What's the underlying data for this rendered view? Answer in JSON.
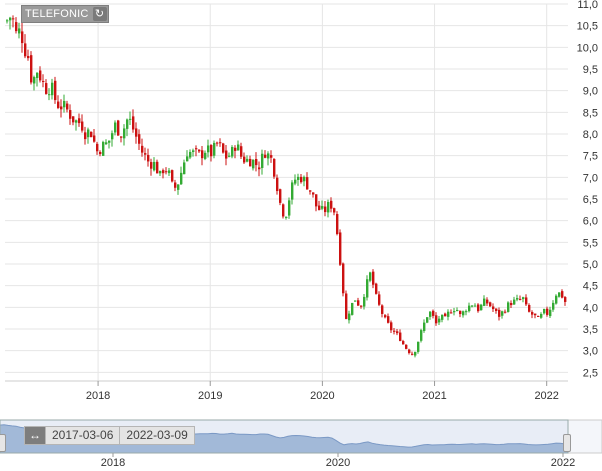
{
  "symbol": {
    "label": "TELEFONIC",
    "refresh_icon": "refresh-icon"
  },
  "navigator": {
    "range_start": "2017-03-06",
    "range_end": "2022-03-09",
    "expand_icon": "expand-horizontal-icon",
    "tick_labels": [
      "2018",
      "2020",
      "2022"
    ]
  },
  "colors": {
    "up": "#33aa33",
    "down": "#cc1111",
    "grid": "#e6e6e6",
    "navigator_fill": "#9fb6d6"
  },
  "chart_data": {
    "type": "candlestick",
    "title": "",
    "xlabel": "",
    "ylabel": "",
    "ylim": [
      2.3,
      11.0
    ],
    "x_range": [
      2017.17,
      2022.19
    ],
    "yticks": [
      2.5,
      3.0,
      3.5,
      4.0,
      4.5,
      5.0,
      5.5,
      6.0,
      6.5,
      7.0,
      7.5,
      8.0,
      8.5,
      9.0,
      9.5,
      10.0,
      10.5,
      11.0
    ],
    "ytick_labels": [
      "2,5",
      "3,0",
      "3,5",
      "4,0",
      "4,5",
      "5,0",
      "5,5",
      "6,0",
      "6,5",
      "7,0",
      "7,5",
      "8,0",
      "8,5",
      "9,0",
      "9,5",
      "10,0",
      "10,5",
      "11,0"
    ],
    "xticks": [
      2018,
      2019,
      2020,
      2021,
      2022
    ],
    "xtick_labels": [
      "2018",
      "2019",
      "2020",
      "2021",
      "2022"
    ],
    "grid": true,
    "legend": "none",
    "path_points": [
      [
        2017.17,
        10.6
      ],
      [
        2017.22,
        10.75
      ],
      [
        2017.26,
        10.3
      ],
      [
        2017.3,
        10.4
      ],
      [
        2017.33,
        10.0
      ],
      [
        2017.38,
        9.7
      ],
      [
        2017.4,
        9.1
      ],
      [
        2017.44,
        9.5
      ],
      [
        2017.48,
        9.3
      ],
      [
        2017.52,
        9.05
      ],
      [
        2017.57,
        9.1
      ],
      [
        2017.62,
        8.7
      ],
      [
        2017.7,
        8.6
      ],
      [
        2017.78,
        8.3
      ],
      [
        2017.84,
        8.25
      ],
      [
        2017.88,
        8.0
      ],
      [
        2017.92,
        8.1
      ],
      [
        2017.98,
        7.6
      ],
      [
        2018.02,
        7.7
      ],
      [
        2018.08,
        7.8
      ],
      [
        2018.14,
        8.2
      ],
      [
        2018.2,
        8.0
      ],
      [
        2018.26,
        8.4
      ],
      [
        2018.32,
        8.0
      ],
      [
        2018.38,
        7.6
      ],
      [
        2018.44,
        7.35
      ],
      [
        2018.5,
        7.3
      ],
      [
        2018.54,
        7.0
      ],
      [
        2018.58,
        7.25
      ],
      [
        2018.62,
        7.1
      ],
      [
        2018.66,
        6.7
      ],
      [
        2018.7,
        6.85
      ],
      [
        2018.74,
        7.2
      ],
      [
        2018.78,
        7.6
      ],
      [
        2018.84,
        7.55
      ],
      [
        2018.9,
        7.5
      ],
      [
        2018.95,
        7.65
      ],
      [
        2019.0,
        7.55
      ],
      [
        2019.06,
        7.8
      ],
      [
        2019.12,
        7.45
      ],
      [
        2019.18,
        7.55
      ],
      [
        2019.22,
        7.8
      ],
      [
        2019.26,
        7.5
      ],
      [
        2019.3,
        7.4
      ],
      [
        2019.36,
        7.4
      ],
      [
        2019.42,
        7.25
      ],
      [
        2019.48,
        7.6
      ],
      [
        2019.54,
        7.4
      ],
      [
        2019.58,
        6.9
      ],
      [
        2019.62,
        6.3
      ],
      [
        2019.66,
        6.1
      ],
      [
        2019.7,
        6.6
      ],
      [
        2019.74,
        6.95
      ],
      [
        2019.8,
        7.0
      ],
      [
        2019.84,
        6.9
      ],
      [
        2019.9,
        6.6
      ],
      [
        2019.94,
        6.3
      ],
      [
        2020.0,
        6.2
      ],
      [
        2020.06,
        6.4
      ],
      [
        2020.1,
        6.2
      ],
      [
        2020.14,
        5.3
      ],
      [
        2020.17,
        4.5
      ],
      [
        2020.2,
        3.7
      ],
      [
        2020.24,
        4.0
      ],
      [
        2020.28,
        4.2
      ],
      [
        2020.33,
        4.0
      ],
      [
        2020.38,
        4.5
      ],
      [
        2020.42,
        4.8
      ],
      [
        2020.46,
        4.3
      ],
      [
        2020.5,
        4.0
      ],
      [
        2020.55,
        3.7
      ],
      [
        2020.6,
        3.5
      ],
      [
        2020.64,
        3.4
      ],
      [
        2020.68,
        3.3
      ],
      [
        2020.72,
        3.1
      ],
      [
        2020.76,
        3.0
      ],
      [
        2020.8,
        2.9
      ],
      [
        2020.84,
        3.2
      ],
      [
        2020.88,
        3.5
      ],
      [
        2020.92,
        3.8
      ],
      [
        2020.96,
        3.9
      ],
      [
        2021.0,
        3.6
      ],
      [
        2021.04,
        3.8
      ],
      [
        2021.08,
        3.7
      ],
      [
        2021.12,
        3.9
      ],
      [
        2021.18,
        4.0
      ],
      [
        2021.22,
        3.8
      ],
      [
        2021.28,
        4.0
      ],
      [
        2021.34,
        4.1
      ],
      [
        2021.38,
        3.95
      ],
      [
        2021.44,
        4.15
      ],
      [
        2021.5,
        4.0
      ],
      [
        2021.56,
        3.8
      ],
      [
        2021.6,
        3.9
      ],
      [
        2021.66,
        4.1
      ],
      [
        2021.72,
        4.15
      ],
      [
        2021.78,
        4.2
      ],
      [
        2021.82,
        3.9
      ],
      [
        2021.88,
        3.8
      ],
      [
        2021.92,
        3.7
      ],
      [
        2021.96,
        3.9
      ],
      [
        2022.0,
        3.85
      ],
      [
        2022.04,
        4.1
      ],
      [
        2022.08,
        4.35
      ],
      [
        2022.12,
        4.3
      ],
      [
        2022.16,
        4.1
      ],
      [
        2022.19,
        3.95
      ]
    ]
  }
}
